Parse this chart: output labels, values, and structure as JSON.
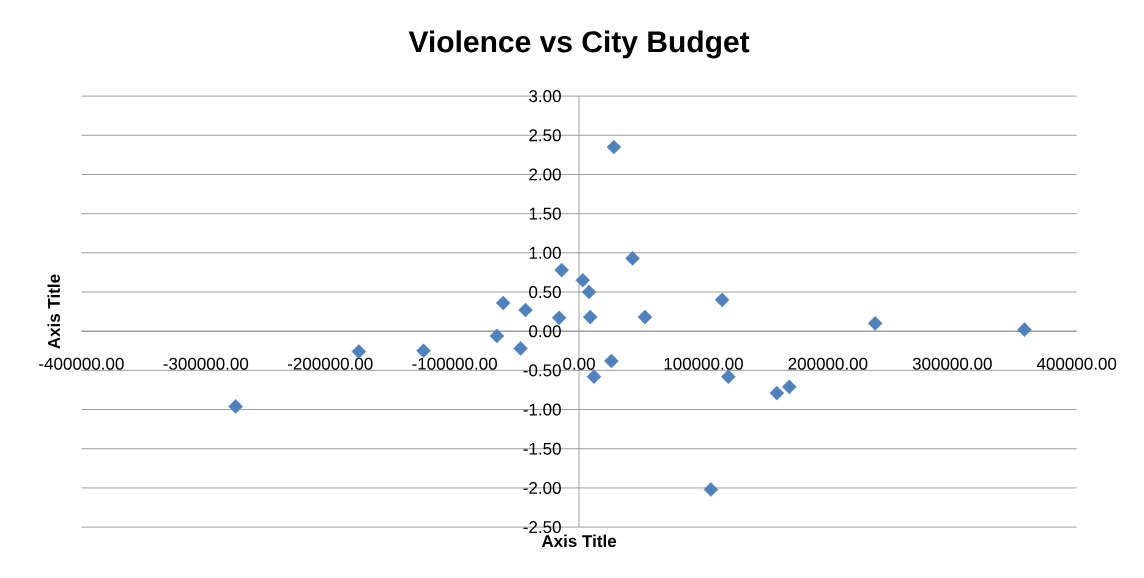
{
  "chart_data": {
    "type": "scatter",
    "title": "Violence vs City Budget",
    "xlabel": "Axis Title",
    "ylabel": "Axis Title",
    "x": [
      -276000,
      -177000,
      -125000,
      -66000,
      -61000,
      -47000,
      -43000,
      -16000,
      -14000,
      3000,
      8000,
      9000,
      12000,
      26000,
      28000,
      43000,
      53000,
      106000,
      115000,
      120000,
      159000,
      169000,
      238000,
      358000
    ],
    "values": [
      -0.96,
      -0.26,
      -0.25,
      -0.06,
      0.36,
      -0.22,
      0.27,
      0.17,
      0.78,
      0.65,
      0.5,
      0.18,
      -0.58,
      -0.38,
      2.35,
      0.93,
      0.18,
      -2.02,
      0.4,
      -0.58,
      -0.79,
      -0.71,
      0.1,
      0.02
    ],
    "color": "#4f81bd",
    "marker": "diamond",
    "grid": "y",
    "xlim": [
      -400000,
      400000
    ],
    "ylim": [
      -2.5,
      3
    ],
    "xticks": [
      {
        "value": -400000,
        "label": "-400000.00"
      },
      {
        "value": -300000,
        "label": "-300000.00"
      },
      {
        "value": -200000,
        "label": "-200000.00"
      },
      {
        "value": -100000,
        "label": "-100000.00"
      },
      {
        "value": 0,
        "label": "0.00"
      },
      {
        "value": 100000,
        "label": "100000.00"
      },
      {
        "value": 200000,
        "label": "200000.00"
      },
      {
        "value": 300000,
        "label": "300000.00"
      },
      {
        "value": 400000,
        "label": "400000.00"
      }
    ],
    "yticks": [
      {
        "value": 3,
        "label": "3.00"
      },
      {
        "value": 2.5,
        "label": "2.50"
      },
      {
        "value": 2,
        "label": "2.00"
      },
      {
        "value": 1.5,
        "label": "1.50"
      },
      {
        "value": 1,
        "label": "1.00"
      },
      {
        "value": 0.5,
        "label": "0.50"
      },
      {
        "value": 0,
        "label": "0.00"
      },
      {
        "value": -0.5,
        "label": "-0.50"
      },
      {
        "value": -1,
        "label": "-1.00"
      },
      {
        "value": -1.5,
        "label": "-1.50"
      },
      {
        "value": -2,
        "label": "-2.00"
      },
      {
        "value": -2.5,
        "label": "-2.50"
      }
    ]
  }
}
